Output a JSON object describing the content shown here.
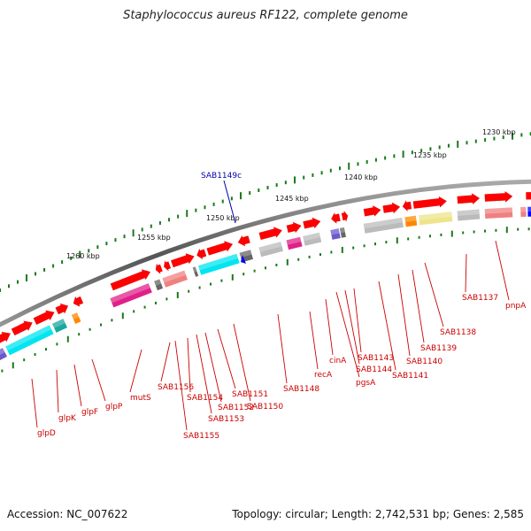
{
  "title": "Staphylococcus aureus RF122, complete genome",
  "footer": {
    "accession": "Accession: NC_007622",
    "summary": "Topology: circular; Length: 2,742,531 bp; Genes: 2,585"
  },
  "focus_gene": "SAB1149c",
  "scale_labels": [
    "1260 kbp",
    "1255 kbp",
    "1250 kbp",
    "1245 kbp",
    "1240 kbp",
    "1235 kbp",
    "1230 kbp"
  ],
  "gene_labels": [
    "glpD",
    "glpK",
    "glpF",
    "glpP",
    "mutS",
    "SAB1156",
    "SAB1155",
    "SAB1154",
    "SAB1153",
    "SAB1152",
    "SAB1151",
    "SAB1150",
    "SAB1148",
    "recA",
    "cinA",
    "pgsA",
    "SAB1144",
    "SAB1143",
    "SAB1141",
    "SAB1140",
    "SAB1139",
    "SAB1138",
    "SAB1137",
    "pnpA"
  ],
  "colors": {
    "gene_red": "#ff0000",
    "magenta": "#e0208a",
    "cyan": "#00e5f0",
    "teal": "#1aa7a0",
    "gray": "#bbbbbb",
    "dark_gray": "#666666",
    "pink": "#f08080",
    "orange": "#ff8800",
    "khaki": "#eee48a",
    "blue": "#0000ff",
    "purple": "#6a5acd",
    "green_tick": "#1a7a1a",
    "label_red": "#cc0000",
    "focus_blue": "#0000aa"
  }
}
